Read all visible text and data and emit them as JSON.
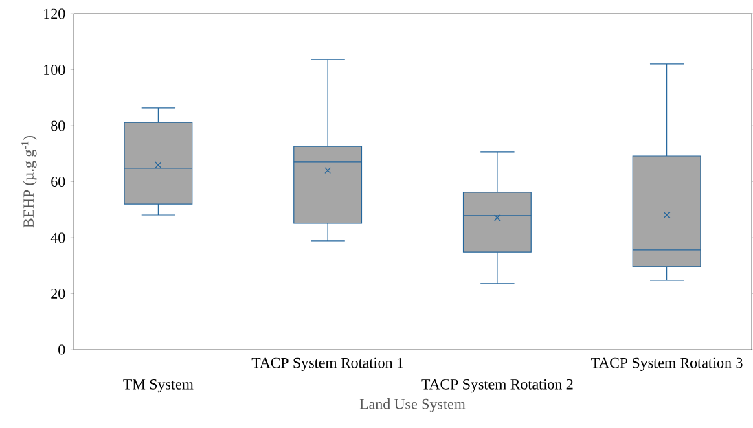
{
  "chart_data": {
    "type": "box",
    "xlabel": "Land Use System",
    "ylabel": "BEHP (µ.g g$^{-1}$)",
    "categories": [
      "TM System",
      "TACP System Rotation 1",
      "TACP System Rotation 2",
      "TACP System Rotation 3"
    ],
    "boxes": [
      {
        "low": 48.1,
        "q1": 52.0,
        "median": 64.8,
        "q3": 81.2,
        "high": 86.4,
        "mean": 66.0
      },
      {
        "low": 38.8,
        "q1": 45.2,
        "median": 67.0,
        "q3": 72.6,
        "high": 103.6,
        "mean": 64.0
      },
      {
        "low": 23.6,
        "q1": 34.8,
        "median": 47.9,
        "q3": 56.2,
        "high": 70.7,
        "mean": 47.1
      },
      {
        "low": 24.8,
        "q1": 29.7,
        "median": 35.6,
        "q3": 69.2,
        "high": 102.1,
        "mean": 48.1
      }
    ],
    "color": "#a6a6a6",
    "marker": "cross",
    "ylim": [
      0,
      120
    ],
    "yticks": [
      0,
      20,
      40,
      60,
      80,
      100,
      120
    ],
    "grid": false
  }
}
